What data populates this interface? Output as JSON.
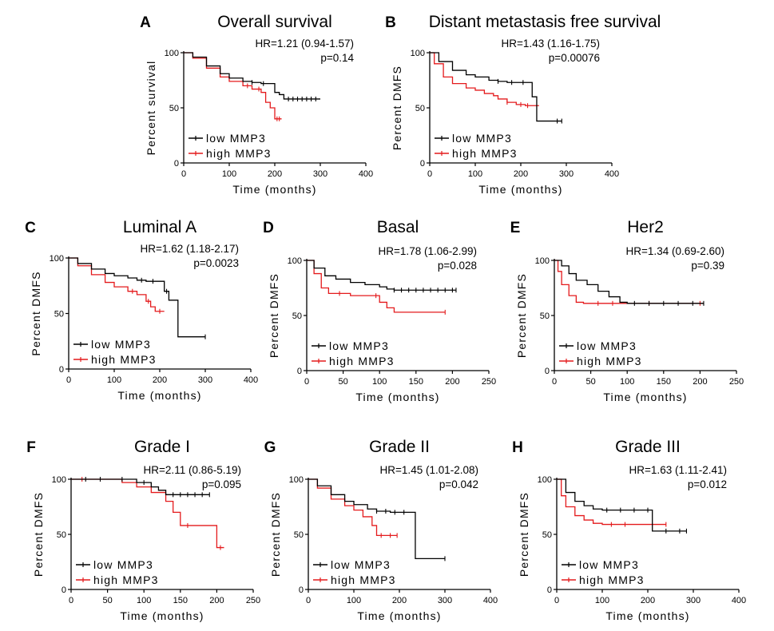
{
  "figure": {
    "background": "#ffffff"
  },
  "colors": {
    "low": "#000000",
    "high": "#e41a1c"
  },
  "chart_data": [
    {
      "letter": "A",
      "title": "Overall survival",
      "type": "line",
      "hr": "HR=1.21 (0.94-1.57)",
      "p": "p=0.14",
      "ylabel": "Percent survival",
      "xlabel": "Time (months)",
      "xlim": [
        0,
        400
      ],
      "ylim": [
        0,
        100
      ],
      "xticks": [
        "0",
        "100",
        "200",
        "300",
        "400"
      ],
      "yticks": [
        "0",
        "50",
        "100"
      ],
      "legend": "bottom-left",
      "series": [
        {
          "name": "low MMP3",
          "color": "#000000",
          "x": [
            0,
            20,
            50,
            80,
            100,
            130,
            150,
            170,
            190,
            200,
            210,
            220,
            300
          ],
          "y": [
            100,
            96,
            88,
            81,
            77,
            74,
            73,
            72,
            72,
            64,
            62,
            58,
            58
          ],
          "censor": [
            150,
            175,
            230,
            240,
            250,
            260,
            270,
            280,
            290
          ]
        },
        {
          "name": "high MMP3",
          "color": "#e41a1c",
          "x": [
            0,
            20,
            50,
            80,
            100,
            130,
            150,
            170,
            180,
            190,
            200,
            215
          ],
          "y": [
            100,
            95,
            86,
            78,
            74,
            70,
            67,
            64,
            55,
            50,
            40,
            40
          ],
          "censor": [
            140,
            165,
            205,
            210
          ]
        }
      ]
    },
    {
      "letter": "B",
      "title": "Distant metastasis free survival",
      "type": "line",
      "hr": "HR=1.43 (1.16-1.75)",
      "p": "p=0.00076",
      "ylabel": "Percent DMFS",
      "xlabel": "Time (months)",
      "xlim": [
        0,
        400
      ],
      "ylim": [
        0,
        100
      ],
      "xticks": [
        "0",
        "100",
        "200",
        "300",
        "400"
      ],
      "yticks": [
        "0",
        "50",
        "100"
      ],
      "legend": "bottom-left",
      "series": [
        {
          "name": "low MMP3",
          "color": "#000000",
          "x": [
            0,
            20,
            50,
            80,
            100,
            130,
            150,
            170,
            190,
            210,
            225,
            235,
            290
          ],
          "y": [
            100,
            92,
            84,
            80,
            78,
            75,
            74,
            73,
            73,
            73,
            60,
            38,
            38
          ],
          "censor": [
            150,
            180,
            205,
            280,
            290
          ]
        },
        {
          "name": "high MMP3",
          "color": "#e41a1c",
          "x": [
            0,
            10,
            30,
            50,
            80,
            100,
            120,
            140,
            150,
            170,
            190,
            210,
            240
          ],
          "y": [
            100,
            90,
            78,
            72,
            68,
            66,
            63,
            61,
            58,
            55,
            53,
            52,
            52
          ],
          "censor": [
            170,
            200,
            215
          ]
        }
      ]
    },
    {
      "letter": "C",
      "title": "Luminal A",
      "type": "line",
      "hr": "HR=1.62 (1.18-2.17)",
      "p": "p=0.0023",
      "ylabel": "Percent DMFS",
      "xlabel": "Time (months)",
      "xlim": [
        0,
        400
      ],
      "ylim": [
        0,
        100
      ],
      "xticks": [
        "0",
        "100",
        "200",
        "300",
        "400"
      ],
      "yticks": [
        "0",
        "50",
        "100"
      ],
      "legend": "bottom-left",
      "series": [
        {
          "name": "low MMP3",
          "color": "#000000",
          "x": [
            0,
            20,
            50,
            80,
            100,
            130,
            150,
            170,
            200,
            210,
            220,
            240,
            300
          ],
          "y": [
            100,
            95,
            90,
            86,
            84,
            82,
            80,
            79,
            79,
            70,
            62,
            29,
            29
          ],
          "censor": [
            160,
            185,
            215,
            300
          ]
        },
        {
          "name": "high MMP3",
          "color": "#e41a1c",
          "x": [
            0,
            20,
            50,
            80,
            100,
            130,
            150,
            170,
            180,
            190,
            210
          ],
          "y": [
            100,
            93,
            85,
            78,
            74,
            70,
            67,
            61,
            56,
            52,
            52
          ],
          "censor": [
            140,
            175,
            200
          ]
        }
      ]
    },
    {
      "letter": "D",
      "title": "Basal",
      "type": "line",
      "hr": "HR=1.78 (1.06-2.99)",
      "p": "p=0.028",
      "ylabel": "Percent DMFS",
      "xlabel": "Time (months)",
      "xlim": [
        0,
        250
      ],
      "ylim": [
        0,
        100
      ],
      "xticks": [
        "0",
        "50",
        "100",
        "150",
        "200",
        "250"
      ],
      "yticks": [
        "0",
        "50",
        "100"
      ],
      "legend": "bottom-left",
      "series": [
        {
          "name": "low MMP3",
          "color": "#000000",
          "x": [
            0,
            10,
            25,
            40,
            60,
            80,
            100,
            110,
            120,
            205
          ],
          "y": [
            100,
            93,
            86,
            83,
            80,
            78,
            76,
            74,
            73,
            73
          ],
          "censor": [
            120,
            130,
            140,
            150,
            160,
            170,
            180,
            190,
            200,
            205
          ]
        },
        {
          "name": "high MMP3",
          "color": "#e41a1c",
          "x": [
            0,
            10,
            20,
            30,
            60,
            90,
            100,
            110,
            120,
            190
          ],
          "y": [
            100,
            88,
            75,
            70,
            68,
            68,
            62,
            57,
            53,
            53
          ],
          "censor": [
            45,
            95,
            190
          ]
        }
      ]
    },
    {
      "letter": "E",
      "title": "Her2",
      "type": "line",
      "hr": "HR=1.34 (0.69-2.60)",
      "p": "p=0.39",
      "ylabel": "Percent DMFS",
      "xlabel": "Time (months)",
      "xlim": [
        0,
        250
      ],
      "ylim": [
        0,
        100
      ],
      "xticks": [
        "0",
        "50",
        "100",
        "150",
        "200",
        "250"
      ],
      "yticks": [
        "0",
        "50",
        "100"
      ],
      "legend": "bottom-left",
      "series": [
        {
          "name": "low MMP3",
          "color": "#000000",
          "x": [
            0,
            10,
            20,
            30,
            45,
            60,
            75,
            90,
            100,
            205
          ],
          "y": [
            100,
            95,
            88,
            82,
            78,
            72,
            67,
            62,
            61,
            61
          ],
          "censor": [
            110,
            130,
            150,
            170,
            190,
            205
          ]
        },
        {
          "name": "high MMP3",
          "color": "#e41a1c",
          "x": [
            0,
            5,
            10,
            20,
            30,
            40,
            205
          ],
          "y": [
            100,
            90,
            78,
            68,
            62,
            61,
            61
          ],
          "censor": [
            60,
            80,
            130,
            200
          ]
        }
      ]
    },
    {
      "letter": "F",
      "title": "Grade I",
      "type": "line",
      "hr": "HR=2.11 (0.86-5.19)",
      "p": "p=0.095",
      "ylabel": "Percent DMFS",
      "xlabel": "Time (months)",
      "xlim": [
        0,
        250
      ],
      "ylim": [
        0,
        100
      ],
      "xticks": [
        "0",
        "50",
        "100",
        "150",
        "200",
        "250"
      ],
      "yticks": [
        "0",
        "50",
        "100"
      ],
      "legend": "bottom-left",
      "series": [
        {
          "name": "low MMP3",
          "color": "#000000",
          "x": [
            0,
            60,
            90,
            110,
            120,
            130,
            190
          ],
          "y": [
            100,
            100,
            97,
            93,
            90,
            86,
            86
          ],
          "censor": [
            20,
            40,
            70,
            100,
            140,
            150,
            160,
            170,
            180,
            190
          ]
        },
        {
          "name": "high MMP3",
          "color": "#e41a1c",
          "x": [
            0,
            50,
            70,
            90,
            110,
            130,
            140,
            150,
            190,
            200,
            210
          ],
          "y": [
            100,
            100,
            97,
            93,
            88,
            80,
            70,
            58,
            58,
            38,
            38
          ],
          "censor": [
            15,
            160,
            205
          ]
        }
      ]
    },
    {
      "letter": "G",
      "title": "Grade II",
      "type": "line",
      "hr": "HR=1.45 (1.01-2.08)",
      "p": "p=0.042",
      "ylabel": "Percent DMFS",
      "xlabel": "Time (months)",
      "xlim": [
        0,
        400
      ],
      "ylim": [
        0,
        100
      ],
      "xticks": [
        "0",
        "100",
        "200",
        "300",
        "400"
      ],
      "yticks": [
        "0",
        "50",
        "100"
      ],
      "legend": "bottom-left",
      "series": [
        {
          "name": "low MMP3",
          "color": "#000000",
          "x": [
            0,
            20,
            50,
            80,
            100,
            130,
            150,
            180,
            220,
            235,
            300
          ],
          "y": [
            100,
            94,
            86,
            80,
            77,
            73,
            71,
            70,
            70,
            28,
            28
          ],
          "censor": [
            150,
            170,
            190,
            210,
            300
          ]
        },
        {
          "name": "high MMP3",
          "color": "#e41a1c",
          "x": [
            0,
            20,
            50,
            80,
            100,
            120,
            140,
            150,
            195
          ],
          "y": [
            100,
            92,
            82,
            76,
            72,
            66,
            58,
            49,
            49
          ],
          "censor": [
            160,
            180,
            195
          ]
        }
      ]
    },
    {
      "letter": "H",
      "title": "Grade III",
      "type": "line",
      "hr": "HR=1.63 (1.11-2.41)",
      "p": "p=0.012",
      "ylabel": "Percent DMFS",
      "xlabel": "Time (months)",
      "xlim": [
        0,
        400
      ],
      "ylim": [
        0,
        100
      ],
      "xticks": [
        "0",
        "100",
        "200",
        "300",
        "400"
      ],
      "yticks": [
        "0",
        "50",
        "100"
      ],
      "legend": "bottom-left",
      "series": [
        {
          "name": "low MMP3",
          "color": "#000000",
          "x": [
            0,
            20,
            40,
            60,
            80,
            100,
            150,
            205,
            210,
            285
          ],
          "y": [
            100,
            88,
            80,
            76,
            73,
            72,
            72,
            72,
            53,
            53
          ],
          "censor": [
            110,
            140,
            170,
            200,
            240,
            270,
            285
          ]
        },
        {
          "name": "high MMP3",
          "color": "#e41a1c",
          "x": [
            0,
            10,
            20,
            40,
            60,
            80,
            100,
            240
          ],
          "y": [
            100,
            85,
            75,
            67,
            63,
            60,
            59,
            59
          ],
          "censor": [
            120,
            150,
            240
          ]
        }
      ]
    }
  ]
}
